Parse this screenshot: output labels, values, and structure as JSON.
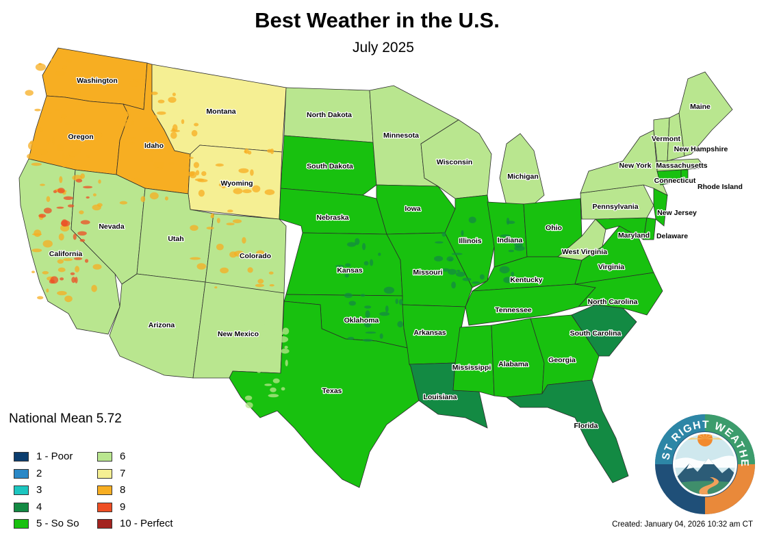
{
  "title": "Best Weather in the U.S.",
  "subtitle": "July 2025",
  "national_mean": "National Mean 5.72",
  "created": "Created: January 04, 2026 10:32 am CT",
  "logo_text": "JUST RIGHT WEATHER",
  "legend": [
    {
      "label": "1 - Poor",
      "color": "#0b3d6e"
    },
    {
      "label": "2",
      "color": "#2a88c6"
    },
    {
      "label": "3",
      "color": "#1cc6c0"
    },
    {
      "label": "4",
      "color": "#138a43"
    },
    {
      "label": "5 - So So",
      "color": "#18c10f"
    },
    {
      "label": "6",
      "color": "#b9e68f"
    },
    {
      "label": "7",
      "color": "#f5ef93"
    },
    {
      "label": "8",
      "color": "#f7ae22"
    },
    {
      "label": "9",
      "color": "#ee4e24"
    },
    {
      "label": "10 - Perfect",
      "color": "#a3231f"
    }
  ],
  "states": {
    "washington": {
      "label": "Washington",
      "score": 8
    },
    "oregon": {
      "label": "Oregon",
      "score": 8
    },
    "california": {
      "label": "California",
      "score": 6
    },
    "idaho": {
      "label": "Idaho",
      "score": 8
    },
    "montana": {
      "label": "Montana",
      "score": 7
    },
    "wyoming": {
      "label": "Wyoming",
      "score": 7
    },
    "nevada": {
      "label": "Nevada",
      "score": 6
    },
    "utah": {
      "label": "Utah",
      "score": 6
    },
    "colorado": {
      "label": "Colorado",
      "score": 6
    },
    "arizona": {
      "label": "Arizona",
      "score": 6
    },
    "new_mexico": {
      "label": "New Mexico",
      "score": 6
    },
    "north_dakota": {
      "label": "North Dakota",
      "score": 6
    },
    "south_dakota": {
      "label": "South Dakota",
      "score": 5
    },
    "nebraska": {
      "label": "Nebraska",
      "score": 5
    },
    "kansas": {
      "label": "Kansas",
      "score": 5
    },
    "oklahoma": {
      "label": "Oklahoma",
      "score": 5
    },
    "texas": {
      "label": "Texas",
      "score": 5
    },
    "minnesota": {
      "label": "Minnesota",
      "score": 6
    },
    "iowa": {
      "label": "Iowa",
      "score": 5
    },
    "missouri": {
      "label": "Missouri",
      "score": 5
    },
    "arkansas": {
      "label": "Arkansas",
      "score": 5
    },
    "louisiana": {
      "label": "Louisiana",
      "score": 4
    },
    "wisconsin": {
      "label": "Wisconsin",
      "score": 6
    },
    "illinois": {
      "label": "Illinois",
      "score": 5
    },
    "michigan": {
      "label": "Michigan",
      "score": 6
    },
    "indiana": {
      "label": "Indiana",
      "score": 5
    },
    "ohio": {
      "label": "Ohio",
      "score": 5
    },
    "kentucky": {
      "label": "Kentucky",
      "score": 5
    },
    "tennessee": {
      "label": "Tennessee",
      "score": 5
    },
    "mississippi": {
      "label": "Mississippi",
      "score": 5
    },
    "alabama": {
      "label": "Alabama",
      "score": 5
    },
    "georgia": {
      "label": "Georgia",
      "score": 5
    },
    "florida": {
      "label": "Florida",
      "score": 4
    },
    "south_carolina": {
      "label": "South Carolina",
      "score": 4
    },
    "north_carolina": {
      "label": "North Carolina",
      "score": 5
    },
    "virginia": {
      "label": "Virginia",
      "score": 5
    },
    "west_virginia": {
      "label": "West Virginia",
      "score": 6
    },
    "maryland": {
      "label": "Maryland",
      "score": 5
    },
    "delaware": {
      "label": "Delaware",
      "score": 5
    },
    "pennsylvania": {
      "label": "Pennsylvania",
      "score": 6
    },
    "new_jersey": {
      "label": "New Jersey",
      "score": 5
    },
    "new_york": {
      "label": "New York",
      "score": 6
    },
    "connecticut": {
      "label": "Connecticut",
      "score": 5
    },
    "rhode_island": {
      "label": "Rhode Island",
      "score": 5
    },
    "massachusetts": {
      "label": "Massachusetts",
      "score": 6
    },
    "vermont": {
      "label": "Vermont",
      "score": 6
    },
    "new_hampshire": {
      "label": "New Hampshire",
      "score": 6
    },
    "maine": {
      "label": "Maine",
      "score": 6
    }
  }
}
